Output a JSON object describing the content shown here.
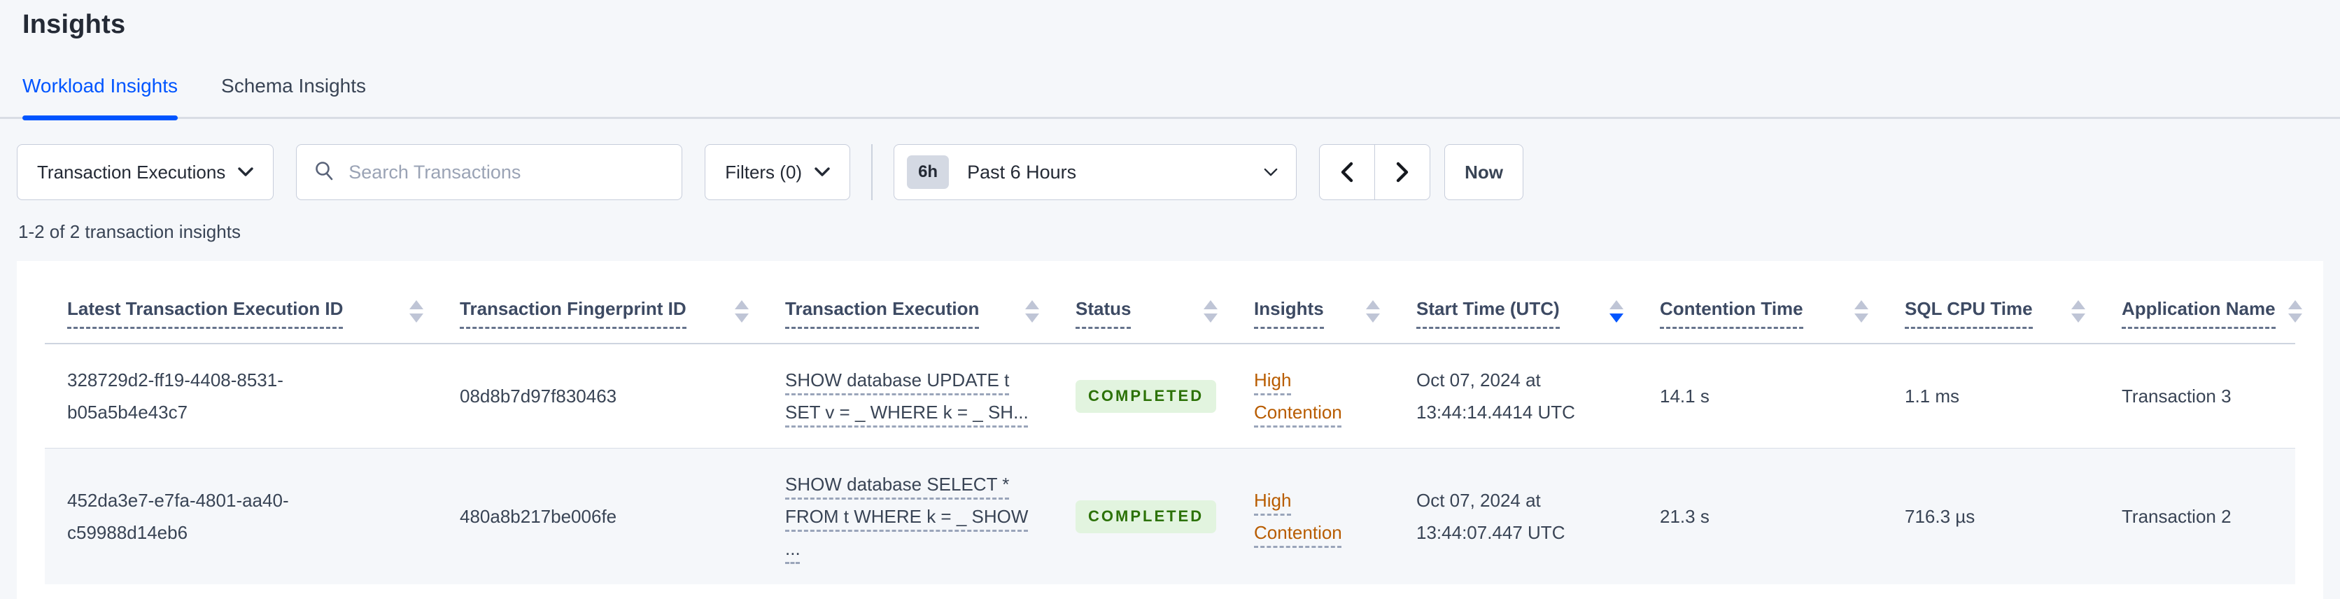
{
  "page": {
    "title": "Insights"
  },
  "tabs": [
    {
      "label": "Workload Insights",
      "active": true
    },
    {
      "label": "Schema Insights",
      "active": false
    }
  ],
  "controls": {
    "view_dropdown": {
      "label": "Transaction Executions"
    },
    "search": {
      "placeholder": "Search Transactions",
      "value": ""
    },
    "filters": {
      "label": "Filters (0)"
    },
    "time_picker": {
      "badge": "6h",
      "label": "Past 6 Hours"
    },
    "now_button": {
      "label": "Now"
    }
  },
  "results_summary": "1-2 of 2 transaction insights",
  "colors": {
    "accent_blue": "#0055ff",
    "status_badge_bg": "#e2f4df",
    "status_badge_text": "#2c7207",
    "insight_link": "#b85c00",
    "page_bg": "#f5f7fa"
  },
  "table": {
    "columns": [
      {
        "id": "latest_id",
        "label": "Latest Transaction Execution ID",
        "sort": null
      },
      {
        "id": "fingerprint",
        "label": "Transaction Fingerprint ID",
        "sort": null
      },
      {
        "id": "execution",
        "label": "Transaction Execution",
        "sort": null
      },
      {
        "id": "status",
        "label": "Status",
        "sort": null
      },
      {
        "id": "insights",
        "label": "Insights",
        "sort": null
      },
      {
        "id": "start_time",
        "label": "Start Time (UTC)",
        "sort": "desc"
      },
      {
        "id": "contention",
        "label": "Contention Time",
        "sort": null
      },
      {
        "id": "sql_cpu",
        "label": "SQL CPU Time",
        "sort": null
      },
      {
        "id": "app_name",
        "label": "Application Name",
        "sort": null
      }
    ],
    "rows": [
      {
        "latest_id": "328729d2-ff19-4408-8531-b05a5b4e43c7",
        "fingerprint": "08d8b7d97f830463",
        "execution": "SHOW database UPDATE t\nSET v = _ WHERE k = _ SH...",
        "status": "COMPLETED",
        "insights": "High Contention",
        "start_time": "Oct 07, 2024 at 13:44:14.4414 UTC",
        "contention": "14.1 s",
        "sql_cpu": "1.1 ms",
        "app_name": "Transaction 3"
      },
      {
        "latest_id": "452da3e7-e7fa-4801-aa40-c59988d14eb6",
        "fingerprint": "480a8b217be006fe",
        "execution": "SHOW database SELECT *\nFROM t WHERE k = _ SHOW\n...",
        "status": "COMPLETED",
        "insights": "High Contention",
        "start_time": "Oct 07, 2024 at 13:44:07.447 UTC",
        "contention": "21.3 s",
        "sql_cpu": "716.3 µs",
        "app_name": "Transaction 2"
      }
    ]
  }
}
